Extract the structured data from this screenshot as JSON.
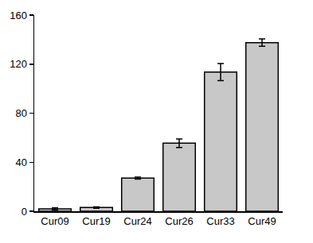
{
  "chart_data": {
    "type": "bar",
    "categories": [
      "Cur09",
      "Cur19",
      "Cur24",
      "Cur26",
      "Cur33",
      "Cur49"
    ],
    "values": [
      2,
      3,
      27,
      55.5,
      113.5,
      137.5
    ],
    "errors": [
      0.8,
      0.5,
      0.8,
      3.5,
      7,
      3
    ],
    "color": "#c8c8c8",
    "ylim": [
      0,
      160
    ],
    "yticks": [
      0,
      40,
      80,
      120,
      160
    ],
    "grid": false
  }
}
